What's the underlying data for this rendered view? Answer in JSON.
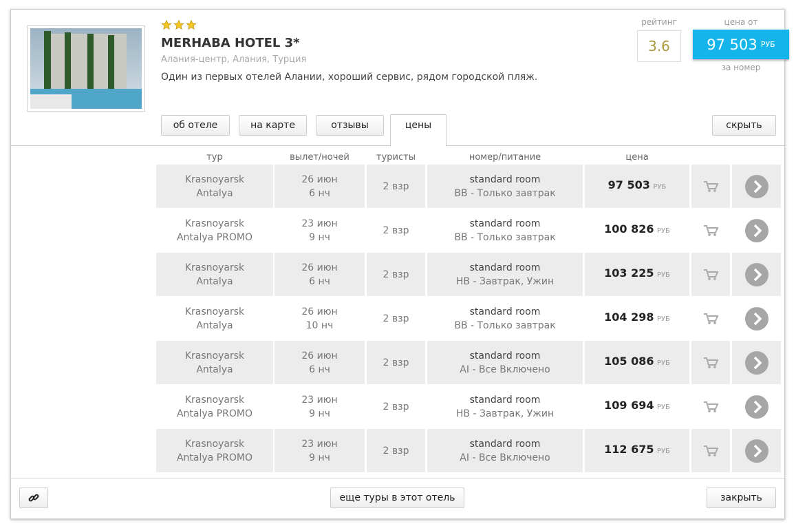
{
  "hotel": {
    "stars": 3,
    "name": "MERHABA HOTEL 3*",
    "location": "Алания-центр, Алания, Турция",
    "description": "Один из первых отелей Алании, хороший сервис, рядом городской пляж.",
    "rating_label": "рейтинг",
    "rating": 3.6,
    "price_label": "цена от",
    "price": "97 503",
    "price_note": "за номер"
  },
  "currency": "РУБ",
  "tabs": [
    "об отеле",
    "на карте",
    "отзывы",
    "цены"
  ],
  "active_tab": 3,
  "hide_button": "скрыть",
  "table": {
    "headers": [
      "тур",
      "вылет/ночей",
      "туристы",
      "номер/питание",
      "цена"
    ],
    "rows": [
      {
        "from": "Krasnoyarsk",
        "to": "Antalya",
        "date": "26 июн",
        "nights": "6 нч",
        "tourists": "2 взр",
        "room": "standard room",
        "meal": "BB - Только завтрак",
        "price": "97 503"
      },
      {
        "from": "Krasnoyarsk",
        "to": "Antalya PROMO",
        "date": "23 июн",
        "nights": "9 нч",
        "tourists": "2 взр",
        "room": "standard room",
        "meal": "BB - Только завтрак",
        "price": "100 826"
      },
      {
        "from": "Krasnoyarsk",
        "to": "Antalya",
        "date": "26 июн",
        "nights": "6 нч",
        "tourists": "2 взр",
        "room": "standard room",
        "meal": "HB - Завтрак, Ужин",
        "price": "103 225"
      },
      {
        "from": "Krasnoyarsk",
        "to": "Antalya",
        "date": "26 июн",
        "nights": "10 нч",
        "tourists": "2 взр",
        "room": "standard room",
        "meal": "BB - Только завтрак",
        "price": "104 298"
      },
      {
        "from": "Krasnoyarsk",
        "to": "Antalya",
        "date": "26 июн",
        "nights": "6 нч",
        "tourists": "2 взр",
        "room": "standard room",
        "meal": "AI - Все Включено",
        "price": "105 086"
      },
      {
        "from": "Krasnoyarsk",
        "to": "Antalya PROMO",
        "date": "23 июн",
        "nights": "9 нч",
        "tourists": "2 взр",
        "room": "standard room",
        "meal": "HB - Завтрак, Ужин",
        "price": "109 694"
      },
      {
        "from": "Krasnoyarsk",
        "to": "Antalya PROMO",
        "date": "23 июн",
        "nights": "9 нч",
        "tourists": "2 взр",
        "room": "standard room",
        "meal": "AI - Все Включено",
        "price": "112 675"
      }
    ]
  },
  "footer": {
    "more": "еще туры в этот отель",
    "close": "закрыть"
  }
}
